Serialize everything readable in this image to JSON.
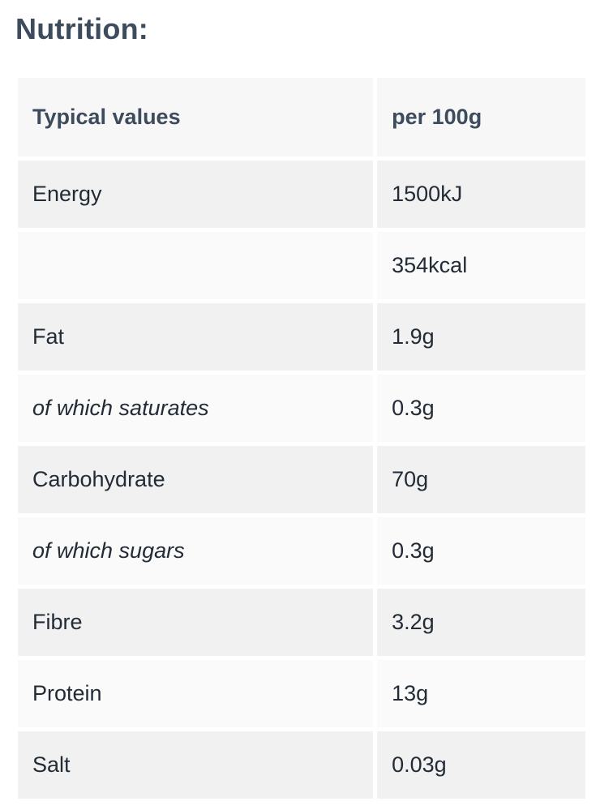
{
  "heading": "Nutrition:",
  "table": {
    "headers": {
      "name": "Typical values",
      "value": "per 100g"
    },
    "rows": [
      {
        "name": "Energy",
        "value": "1500kJ",
        "italic": false
      },
      {
        "name": "",
        "value": "354kcal",
        "italic": false
      },
      {
        "name": "Fat",
        "value": "1.9g",
        "italic": false
      },
      {
        "name": "of which saturates",
        "value": "0.3g",
        "italic": true
      },
      {
        "name": "Carbohydrate",
        "value": "70g",
        "italic": false
      },
      {
        "name": "of which sugars",
        "value": "0.3g",
        "italic": true
      },
      {
        "name": "Fibre",
        "value": "3.2g",
        "italic": false
      },
      {
        "name": "Protein",
        "value": "13g",
        "italic": false
      },
      {
        "name": "Salt",
        "value": "0.03g",
        "italic": false
      }
    ]
  }
}
